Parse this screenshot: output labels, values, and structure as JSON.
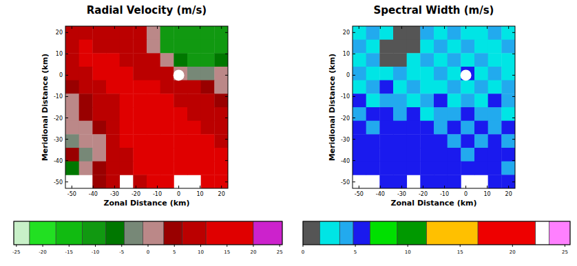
{
  "chart_data": [
    {
      "type": "heatmap",
      "title": "Radial Velocity (m/s)",
      "x_label": "Zonal Distance (km)",
      "y_label": "Meridional Distance (km)",
      "xlim": [
        -53,
        23
      ],
      "ylim": [
        -53,
        23
      ],
      "xticks": [
        -50,
        -40,
        -30,
        -20,
        -10,
        0,
        10,
        20
      ],
      "yticks": [
        -50,
        -40,
        -30,
        -20,
        -10,
        0,
        10,
        20
      ],
      "radar_location": {
        "x": 0,
        "y": 0
      },
      "cells": [
        [
          8,
          10,
          10,
          9,
          8,
          10,
          2,
          -10,
          -12,
          -12,
          -12,
          -12
        ],
        [
          10,
          12,
          10,
          9,
          10,
          10,
          1,
          -10,
          -12,
          -12,
          -12,
          -10
        ],
        [
          9,
          11,
          12,
          12,
          10,
          10,
          8,
          2,
          -8,
          -10,
          -10,
          -8
        ],
        [
          8,
          10,
          12,
          12,
          12,
          10,
          10,
          8,
          2,
          -4,
          -2,
          2
        ],
        [
          5,
          8,
          10,
          12,
          12,
          12,
          12,
          10,
          10,
          8,
          3,
          2
        ],
        [
          2,
          5,
          8,
          10,
          12,
          12,
          12,
          12,
          10,
          10,
          8,
          5
        ],
        [
          0,
          3,
          8,
          10,
          12,
          14,
          12,
          12,
          12,
          10,
          10,
          10
        ],
        [
          2,
          0,
          5,
          10,
          12,
          12,
          14,
          12,
          12,
          12,
          10,
          10
        ],
        [
          -2,
          2,
          0,
          8,
          12,
          12,
          12,
          12,
          12,
          12,
          12,
          10
        ],
        [
          3,
          -3,
          2,
          8,
          10,
          12,
          12,
          12,
          14,
          12,
          12,
          12
        ],
        [
          -8,
          0,
          5,
          8,
          10,
          12,
          12,
          12,
          12,
          12,
          12,
          12
        ],
        [
          null,
          null,
          5,
          10,
          null,
          8,
          12,
          12,
          null,
          null,
          12,
          12
        ]
      ],
      "colorbar": {
        "range": [
          -25.5,
          25.5
        ],
        "ticks": [
          -25,
          -20,
          -15,
          -10,
          -5,
          0,
          5,
          10,
          15,
          20,
          25
        ],
        "boundaries": [
          -25.5,
          -22.5,
          -17.5,
          -12.5,
          -8,
          -4.5,
          -1,
          3,
          6.5,
          11,
          20,
          25.5
        ],
        "colors": [
          "#c8f0c8",
          "#22e022",
          "#11bb11",
          "#119911",
          "#007700",
          "#778877",
          "#bb8888",
          "#990000",
          "#bb0000",
          "#e00000",
          "#cc22cc"
        ]
      }
    },
    {
      "type": "heatmap",
      "title": "Spectral Width (m/s)",
      "x_label": "Zonal Distance (km)",
      "y_label": "Meridional Distance (km)",
      "xlim": [
        -53,
        23
      ],
      "ylim": [
        -53,
        23
      ],
      "xticks": [
        -50,
        -40,
        -30,
        -20,
        -10,
        0,
        10,
        20
      ],
      "yticks": [
        -50,
        -40,
        -30,
        -20,
        -10,
        0,
        10,
        20
      ],
      "radar_location": {
        "x": 0,
        "y": 0
      },
      "cells": [
        [
          3,
          4,
          3,
          1,
          1,
          4,
          3,
          4,
          3,
          3,
          4,
          3
        ],
        [
          4,
          3,
          1,
          1,
          1,
          3,
          4,
          3,
          4,
          3,
          3,
          4
        ],
        [
          3,
          4,
          1,
          1,
          3,
          4,
          3,
          4,
          3,
          4,
          3,
          3
        ],
        [
          4,
          3,
          3,
          4,
          3,
          3,
          4,
          3,
          5,
          3,
          4,
          3
        ],
        [
          3,
          4,
          5,
          3,
          4,
          3,
          3,
          4,
          3,
          4,
          3,
          4
        ],
        [
          5,
          3,
          4,
          4,
          3,
          4,
          5,
          3,
          4,
          3,
          5,
          4
        ],
        [
          4,
          5,
          6,
          4,
          5,
          3,
          4,
          4,
          5,
          4,
          4,
          3
        ],
        [
          5,
          4,
          5,
          6,
          6,
          5,
          4,
          5,
          4,
          5,
          4,
          5
        ],
        [
          6,
          5,
          6,
          6,
          6,
          6,
          5,
          4,
          5,
          4,
          5,
          4
        ],
        [
          5,
          6,
          6,
          6,
          6,
          5,
          6,
          5,
          4,
          5,
          6,
          5
        ],
        [
          6,
          6,
          5,
          6,
          5,
          6,
          5,
          6,
          5,
          6,
          5,
          4
        ],
        [
          null,
          null,
          6,
          5,
          null,
          6,
          5,
          6,
          null,
          null,
          5,
          6
        ]
      ],
      "colorbar": {
        "range": [
          0,
          25.5
        ],
        "ticks": [
          0,
          5,
          10,
          15,
          20,
          25
        ],
        "boundaries": [
          0,
          1.6,
          3.5,
          4.8,
          6.4,
          9,
          11.8,
          16.7,
          22.2,
          23.5,
          25.5
        ],
        "colors": [
          "#555555",
          "#00e5e5",
          "#22aaee",
          "#1a1aee",
          "#00e000",
          "#009900",
          "#ffc000",
          "#ee0000",
          "#ffffff",
          "#ff80ff"
        ]
      }
    }
  ]
}
